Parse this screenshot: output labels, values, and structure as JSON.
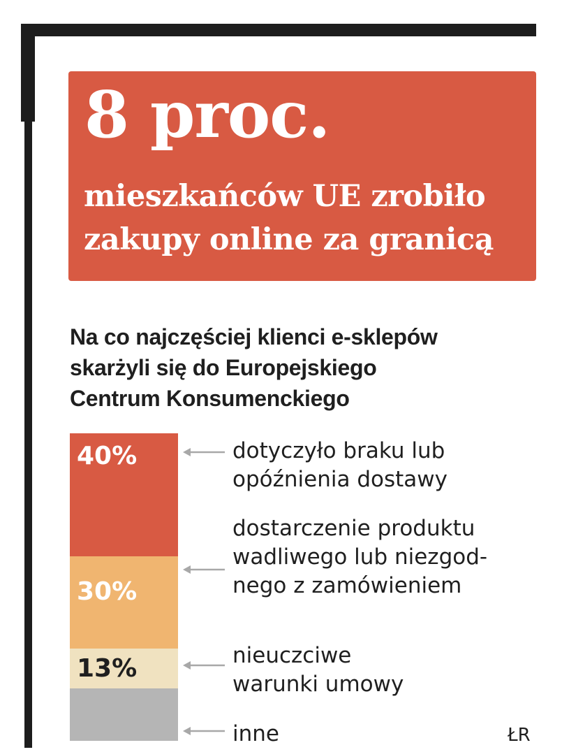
{
  "headline": {
    "big": "8 proc.",
    "line1": "mieszkańców UE zrobiło",
    "line2": "zakupy online za granicą"
  },
  "subtitle": {
    "line1": "Na co najczęściej klienci e-sklepów",
    "line2": "skarżyli się do Europejskiego",
    "line3": "Centrum Konsumenckiego"
  },
  "source": "ŁR",
  "colors": {
    "headline_bg": "#d85a43",
    "frame": "#1d1d1d",
    "arrow": "#a8a8a8"
  },
  "chart_data": {
    "type": "bar",
    "stacked": true,
    "title": "Na co najczęściej klienci e-sklepów skarżyli się do Europejskiego Centrum Konsumenckiego",
    "segments": [
      {
        "value": 40,
        "value_label": "40%",
        "label_lines": [
          "dotyczyło braku lub",
          "opóźnienia dostawy"
        ],
        "color": "#d85a43",
        "value_text_color": "#ffffff"
      },
      {
        "value": 30,
        "value_label": "30%",
        "label_lines": [
          "dostarczenie produktu",
          "wadliwego lub niezgod-",
          "nego z zamówieniem"
        ],
        "color": "#f0b570",
        "value_text_color": "#ffffff"
      },
      {
        "value": 13,
        "value_label": "13%",
        "label_lines": [
          "nieuczciwe",
          "warunki umowy"
        ],
        "color": "#f0e2c0",
        "value_text_color": "#1f1f1f"
      },
      {
        "value": 17,
        "value_label": "",
        "label_lines": [
          "inne"
        ],
        "color": "#b5b5b5",
        "value_text_color": "#1f1f1f"
      }
    ]
  }
}
